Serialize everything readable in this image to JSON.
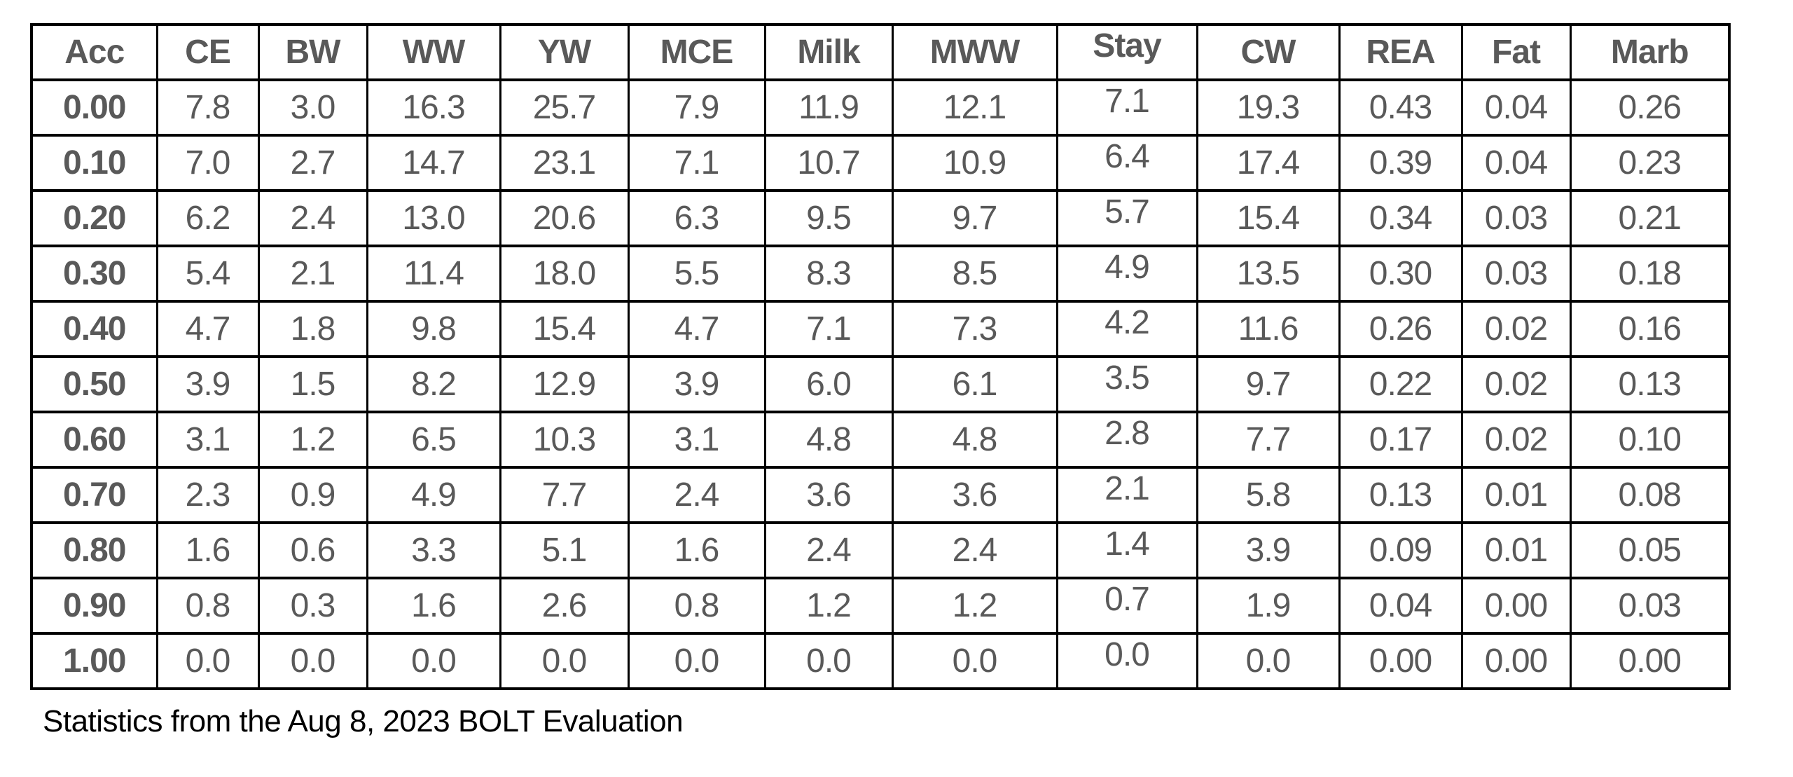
{
  "page": {
    "background": "#ffffff"
  },
  "caption": {
    "text": "Statistics from the Aug 8, 2023 BOLT Evaluation",
    "color": "#000000"
  },
  "table_style": {
    "text_color": "#595959",
    "border_color": "#000000"
  },
  "chart_data": {
    "type": "table",
    "title": "Statistics from the Aug 8, 2023 BOLT Evaluation",
    "row_label_column": "Acc",
    "columns": [
      "Acc",
      "CE",
      "BW",
      "WW",
      "YW",
      "MCE",
      "Milk",
      "MWW",
      "Stay",
      "CW",
      "REA",
      "Fat",
      "Marb"
    ],
    "rows": [
      [
        "0.00",
        "7.8",
        "3.0",
        "16.3",
        "25.7",
        "7.9",
        "11.9",
        "12.1",
        "7.1",
        "19.3",
        "0.43",
        "0.04",
        "0.26"
      ],
      [
        "0.10",
        "7.0",
        "2.7",
        "14.7",
        "23.1",
        "7.1",
        "10.7",
        "10.9",
        "6.4",
        "17.4",
        "0.39",
        "0.04",
        "0.23"
      ],
      [
        "0.20",
        "6.2",
        "2.4",
        "13.0",
        "20.6",
        "6.3",
        "9.5",
        "9.7",
        "5.7",
        "15.4",
        "0.34",
        "0.03",
        "0.21"
      ],
      [
        "0.30",
        "5.4",
        "2.1",
        "11.4",
        "18.0",
        "5.5",
        "8.3",
        "8.5",
        "4.9",
        "13.5",
        "0.30",
        "0.03",
        "0.18"
      ],
      [
        "0.40",
        "4.7",
        "1.8",
        "9.8",
        "15.4",
        "4.7",
        "7.1",
        "7.3",
        "4.2",
        "11.6",
        "0.26",
        "0.02",
        "0.16"
      ],
      [
        "0.50",
        "3.9",
        "1.5",
        "8.2",
        "12.9",
        "3.9",
        "6.0",
        "6.1",
        "3.5",
        "9.7",
        "0.22",
        "0.02",
        "0.13"
      ],
      [
        "0.60",
        "3.1",
        "1.2",
        "6.5",
        "10.3",
        "3.1",
        "4.8",
        "4.8",
        "2.8",
        "7.7",
        "0.17",
        "0.02",
        "0.10"
      ],
      [
        "0.70",
        "2.3",
        "0.9",
        "4.9",
        "7.7",
        "2.4",
        "3.6",
        "3.6",
        "2.1",
        "5.8",
        "0.13",
        "0.01",
        "0.08"
      ],
      [
        "0.80",
        "1.6",
        "0.6",
        "3.3",
        "5.1",
        "1.6",
        "2.4",
        "2.4",
        "1.4",
        "3.9",
        "0.09",
        "0.01",
        "0.05"
      ],
      [
        "0.90",
        "0.8",
        "0.3",
        "1.6",
        "2.6",
        "0.8",
        "1.2",
        "1.2",
        "0.7",
        "1.9",
        "0.04",
        "0.00",
        "0.03"
      ],
      [
        "1.00",
        "0.0",
        "0.0",
        "0.0",
        "0.0",
        "0.0",
        "0.0",
        "0.0",
        "0.0",
        "0.0",
        "0.00",
        "0.00",
        "0.00"
      ]
    ]
  }
}
